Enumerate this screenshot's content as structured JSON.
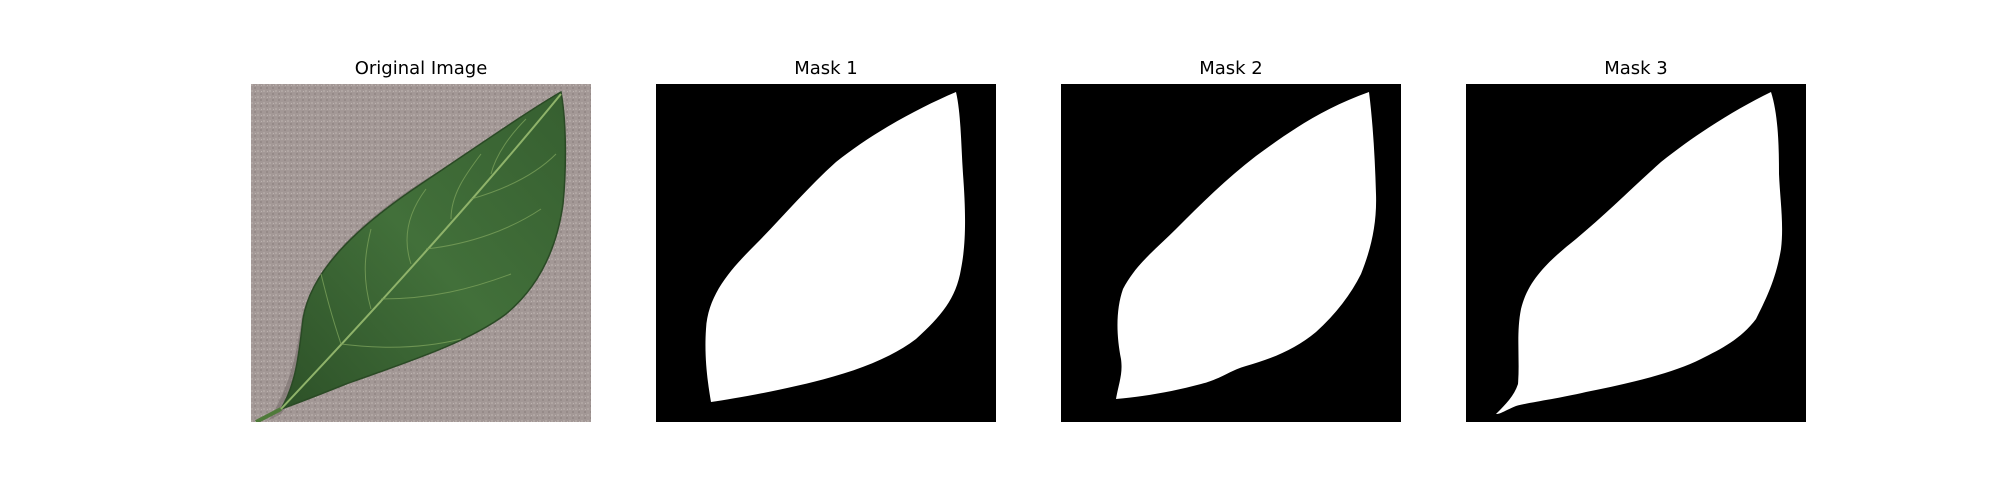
{
  "figure": {
    "panels": [
      {
        "title": "Original Image",
        "kind": "photo"
      },
      {
        "title": "Mask 1",
        "kind": "mask"
      },
      {
        "title": "Mask 2",
        "kind": "mask"
      },
      {
        "title": "Mask 3",
        "kind": "mask"
      }
    ]
  },
  "colors": {
    "background": "#ffffff",
    "mask_bg": "#000000",
    "mask_fg": "#ffffff",
    "leaf": "#3f6b37",
    "leaf_dark": "#2f5429",
    "vein": "#8fb36a",
    "surface": "#a39896"
  }
}
